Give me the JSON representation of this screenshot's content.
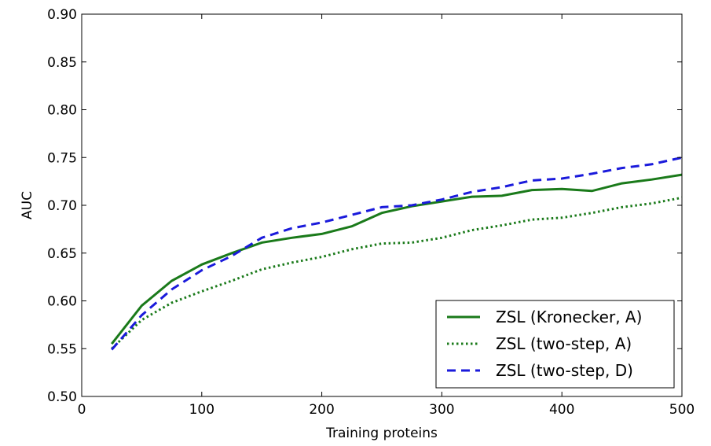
{
  "chart_data": {
    "type": "line",
    "xlabel": "Training proteins",
    "ylabel": "AUC",
    "xlim": [
      0,
      500
    ],
    "ylim": [
      0.5,
      0.9
    ],
    "xticks": [
      0,
      100,
      200,
      300,
      400,
      500
    ],
    "yticks": [
      0.5,
      0.55,
      0.6,
      0.65,
      0.7,
      0.75,
      0.8,
      0.85,
      0.9
    ],
    "xtick_labels": [
      "0",
      "100",
      "200",
      "300",
      "400",
      "500"
    ],
    "ytick_labels": [
      "0.50",
      "0.55",
      "0.60",
      "0.65",
      "0.70",
      "0.75",
      "0.80",
      "0.85",
      "0.90"
    ],
    "grid": false,
    "legend_position": "bottom-right",
    "x": [
      25,
      50,
      75,
      100,
      125,
      150,
      175,
      200,
      225,
      250,
      275,
      300,
      325,
      350,
      375,
      400,
      425,
      450,
      475,
      500
    ],
    "series": [
      {
        "name": "ZSL (Kronecker, A)",
        "color": "#1a7a1a",
        "style": "solid",
        "values": [
          0.555,
          0.595,
          0.621,
          0.638,
          0.65,
          0.661,
          0.666,
          0.67,
          0.678,
          0.692,
          0.699,
          0.704,
          0.709,
          0.71,
          0.716,
          0.717,
          0.715,
          0.723,
          0.727,
          0.732
        ]
      },
      {
        "name": "ZSL (two-step, A)",
        "color": "#1a7a1a",
        "style": "dotted",
        "values": [
          0.55,
          0.58,
          0.598,
          0.61,
          0.621,
          0.633,
          0.64,
          0.646,
          0.654,
          0.66,
          0.661,
          0.666,
          0.674,
          0.679,
          0.685,
          0.687,
          0.692,
          0.698,
          0.702,
          0.708
        ]
      },
      {
        "name": "ZSL (two-step, D)",
        "color": "#1a1adb",
        "style": "dashed",
        "values": [
          0.549,
          0.585,
          0.612,
          0.632,
          0.647,
          0.666,
          0.676,
          0.682,
          0.69,
          0.698,
          0.7,
          0.706,
          0.714,
          0.719,
          0.726,
          0.728,
          0.733,
          0.739,
          0.743,
          0.75
        ]
      }
    ]
  }
}
